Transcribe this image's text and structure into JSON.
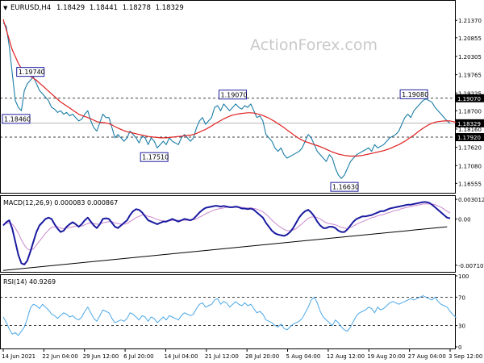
{
  "header": {
    "arrow_glyph": "▼",
    "symbol": "EURUSD,H4",
    "ohlc": [
      "1.18429",
      "1.18441",
      "1.18278",
      "1.18329"
    ]
  },
  "watermark": "ActionForex.com",
  "colors": {
    "price": "#1a7da6",
    "ma": "#e02020",
    "macd": "#1a1aa0",
    "signal": "#cc88cc",
    "rsi": "#4aa8e8",
    "grid": "#000000",
    "label_border": "#2020a0",
    "price_tag": "#000000",
    "level_tag": "#000000"
  },
  "chart_data": [
    {
      "type": "line",
      "title": "EURUSD,H4",
      "ylim": [
        1.163,
        1.219
      ],
      "y_ticks": [
        "1.21370",
        "1.20855",
        "1.20305",
        "1.19765",
        "1.19225",
        "1.18700",
        "1.18160",
        "1.17620",
        "1.17080",
        "1.16555"
      ],
      "y_tick_values": [
        1.2137,
        1.20855,
        1.20305,
        1.19765,
        1.19225,
        1.187,
        1.1816,
        1.1762,
        1.1708,
        1.16555
      ],
      "last_price": "1.18329",
      "last_price_value": 1.18329,
      "levels": [
        {
          "label": "1.19070",
          "value": 1.1907
        },
        {
          "label": "1.17920",
          "value": 1.1792
        }
      ],
      "side_labels": [
        {
          "label": "1.18460",
          "value": 1.1846
        }
      ],
      "annotations": [
        {
          "label": "1.19740",
          "x": 9,
          "value": 1.1974
        },
        {
          "label": "1.17510",
          "x": 50,
          "value": 1.1751
        },
        {
          "label": "1.19070",
          "x": 76,
          "value": 1.1907
        },
        {
          "label": "1.16630",
          "x": 113,
          "value": 1.1663
        },
        {
          "label": "1.19080",
          "x": 136,
          "value": 1.1908
        }
      ],
      "series": [
        {
          "name": "close",
          "values": [
            1.213,
            1.212,
            1.206,
            1.198,
            1.19,
            1.188,
            1.187,
            1.193,
            1.195,
            1.196,
            1.197,
            1.195,
            1.193,
            1.192,
            1.191,
            1.19,
            1.188,
            1.1875,
            1.1865,
            1.187,
            1.186,
            1.1865,
            1.1855,
            1.186,
            1.185,
            1.184,
            1.1845,
            1.186,
            1.187,
            1.184,
            1.182,
            1.181,
            1.1835,
            1.186,
            1.185,
            1.185,
            1.182,
            1.179,
            1.18,
            1.179,
            1.178,
            1.179,
            1.181,
            1.18,
            1.179,
            1.1775,
            1.1795,
            1.179,
            1.177,
            1.179,
            1.178,
            1.176,
            1.177,
            1.178,
            1.177,
            1.179,
            1.178,
            1.1775,
            1.177,
            1.179,
            1.18,
            1.179,
            1.178,
            1.179,
            1.182,
            1.184,
            1.185,
            1.183,
            1.184,
            1.185,
            1.188,
            1.1885,
            1.187,
            1.189,
            1.188,
            1.187,
            1.188,
            1.189,
            1.188,
            1.1875,
            1.1885,
            1.188,
            1.189,
            1.187,
            1.185,
            1.1855,
            1.184,
            1.18,
            1.179,
            1.178,
            1.176,
            1.175,
            1.176,
            1.174,
            1.173,
            1.1735,
            1.174,
            1.1745,
            1.175,
            1.176,
            1.178,
            1.18,
            1.179,
            1.177,
            1.175,
            1.174,
            1.173,
            1.172,
            1.174,
            1.173,
            1.17,
            1.168,
            1.167,
            1.168,
            1.17,
            1.172,
            1.173,
            1.174,
            1.1745,
            1.175,
            1.1755,
            1.176,
            1.175,
            1.177,
            1.176,
            1.1765,
            1.177,
            1.178,
            1.179,
            1.1795,
            1.18,
            1.181,
            1.183,
            1.185,
            1.186,
            1.185,
            1.187,
            1.188,
            1.189,
            1.19,
            1.1905,
            1.19,
            1.1895,
            1.188,
            1.187,
            1.186,
            1.185,
            1.184,
            1.1833
          ]
        },
        {
          "name": "moving average",
          "values": [
            1.214,
            1.211,
            1.208,
            1.205,
            1.203,
            1.201,
            1.1995,
            1.1985,
            1.1978,
            1.1972,
            1.1966,
            1.196,
            1.1952,
            1.1944,
            1.1936,
            1.1928,
            1.192,
            1.1912,
            1.1904,
            1.1896,
            1.189,
            1.1884,
            1.1878,
            1.1872,
            1.1866,
            1.186,
            1.1856,
            1.1853,
            1.185,
            1.1846,
            1.1842,
            1.1838,
            1.1836,
            1.1835,
            1.1834,
            1.1832,
            1.1828,
            1.1823,
            1.1819,
            1.1815,
            1.1811,
            1.1808,
            1.1806,
            1.1804,
            1.1802,
            1.18,
            1.1798,
            1.1796,
            1.1794,
            1.1793,
            1.1792,
            1.1791,
            1.179,
            1.179,
            1.179,
            1.1791,
            1.1792,
            1.1793,
            1.1794,
            1.1795,
            1.1796,
            1.1797,
            1.1798,
            1.18,
            1.1803,
            1.1807,
            1.1811,
            1.1815,
            1.182,
            1.1825,
            1.1831,
            1.1836,
            1.1841,
            1.1846,
            1.185,
            1.1854,
            1.1857,
            1.1859,
            1.1861,
            1.1862,
            1.1863,
            1.1864,
            1.1864,
            1.1863,
            1.1861,
            1.1859,
            1.1856,
            1.1852,
            1.1848,
            1.1843,
            1.1838,
            1.1832,
            1.1826,
            1.182,
            1.1813,
            1.1807,
            1.18,
            1.1794,
            1.1788,
            1.1783,
            1.1779,
            1.1776,
            1.1773,
            1.177,
            1.1767,
            1.1764,
            1.176,
            1.1756,
            1.1752,
            1.1748,
            1.1745,
            1.1742,
            1.174,
            1.1738,
            1.1737,
            1.1736,
            1.1736,
            1.1736,
            1.1737,
            1.1738,
            1.174,
            1.1742,
            1.1744,
            1.1746,
            1.1748,
            1.175,
            1.1752,
            1.1755,
            1.1758,
            1.1762,
            1.1766,
            1.177,
            1.1775,
            1.178,
            1.1786,
            1.1792,
            1.1798,
            1.1805,
            1.1812,
            1.1818,
            1.1824,
            1.1829,
            1.1833,
            1.1836,
            1.1838,
            1.1839,
            1.184,
            1.184,
            1.184,
            1.1838,
            1.1836
          ]
        }
      ],
      "x_ticks": [
        "14 Jun 2021",
        "22 Jun 04:00",
        "29 Jun 12:00",
        "6 Jul 20:00",
        "14 Jul 04:00",
        "21 Jul 12:00",
        "28 Jul 20:00",
        "5 Aug 04:00",
        "12 Aug 12:00",
        "19 Aug 20:00",
        "27 Aug 04:00",
        "3 Sep 12:00"
      ]
    },
    {
      "type": "line",
      "title": "MACD(12,26,9) 0.000083 0.000867",
      "ylim": [
        -0.008,
        0.0034
      ],
      "y_ticks": [
        "0.003012",
        "0.00",
        "-0.007109"
      ],
      "y_tick_values": [
        0.003012,
        0.0,
        -0.007109
      ],
      "series": [
        {
          "name": "MACD",
          "values": [
            -0.001,
            -0.0005,
            -0.0002,
            -0.0015,
            -0.0035,
            -0.0055,
            -0.0068,
            -0.007,
            -0.0064,
            -0.005,
            -0.0035,
            -0.002,
            -0.001,
            -0.0005,
            0.0,
            0.0002,
            0.0,
            -0.0008,
            -0.0015,
            -0.002,
            -0.0018,
            -0.0012,
            -0.0008,
            -0.0005,
            -0.0008,
            -0.0012,
            -0.0008,
            -0.0002,
            0.0002,
            -0.0004,
            -0.001,
            -0.0014,
            -0.0008,
            0.0,
            0.0001,
            0.0,
            -0.0006,
            -0.0012,
            -0.0014,
            -0.001,
            -0.0006,
            -0.0002,
            0.0006,
            0.0012,
            0.0015,
            0.0014,
            0.001,
            0.0004,
            -0.0002,
            -0.0004,
            -0.0006,
            -0.0008,
            -0.0006,
            -0.0004,
            -0.0004,
            -0.0002,
            0.0,
            -0.0002,
            -0.0004,
            -0.0002,
            0.0,
            -0.0001,
            -0.0002,
            0.0,
            0.0005,
            0.001,
            0.0014,
            0.0017,
            0.0018,
            0.0019,
            0.002,
            0.002,
            0.0019,
            0.002,
            0.0019,
            0.0018,
            0.0018,
            0.0019,
            0.0018,
            0.0016,
            0.0016,
            0.0015,
            0.0016,
            0.0014,
            0.001,
            0.0006,
            0.0002,
            -0.0006,
            -0.0012,
            -0.0018,
            -0.0022,
            -0.0024,
            -0.0025,
            -0.0026,
            -0.0024,
            -0.002,
            -0.0014,
            -0.0006,
            0.0002,
            0.0008,
            0.0012,
            0.0014,
            0.001,
            0.0004,
            -0.0004,
            -0.001,
            -0.0014,
            -0.0014,
            -0.0012,
            -0.0012,
            -0.0014,
            -0.0018,
            -0.002,
            -0.002,
            -0.0016,
            -0.001,
            -0.0004,
            0.0,
            0.0002,
            0.0004,
            0.0004,
            0.0005,
            0.0006,
            0.0008,
            0.001,
            0.0012,
            0.0012,
            0.0014,
            0.0016,
            0.0017,
            0.0018,
            0.0019,
            0.002,
            0.0021,
            0.0022,
            0.0022,
            0.0023,
            0.0024,
            0.0025,
            0.0026,
            0.0026,
            0.0025,
            0.0022,
            0.0018,
            0.0014,
            0.001,
            0.0006,
            0.0002,
            0.0001
          ]
        },
        {
          "name": "Signal",
          "values": [
            -0.0008,
            -0.0007,
            -0.0006,
            -0.0008,
            -0.0014,
            -0.0022,
            -0.0032,
            -0.004,
            -0.0046,
            -0.0048,
            -0.0046,
            -0.004,
            -0.0034,
            -0.0028,
            -0.0022,
            -0.0017,
            -0.0013,
            -0.0012,
            -0.0012,
            -0.0014,
            -0.0015,
            -0.0014,
            -0.0013,
            -0.0012,
            -0.0011,
            -0.0011,
            -0.0011,
            -0.0009,
            -0.0007,
            -0.0006,
            -0.0007,
            -0.0008,
            -0.0008,
            -0.0006,
            -0.0005,
            -0.0004,
            -0.0004,
            -0.0006,
            -0.0007,
            -0.0008,
            -0.0008,
            -0.0007,
            -0.0004,
            -0.0001,
            0.0002,
            0.0004,
            0.0006,
            0.0006,
            0.0004,
            0.0003,
            0.0001,
            -0.0001,
            -0.0002,
            -0.0003,
            -0.0003,
            -0.0003,
            -0.0002,
            -0.0002,
            -0.0002,
            -0.0002,
            -0.0002,
            -0.0002,
            -0.0002,
            -0.0001,
            0.0,
            0.0003,
            0.0005,
            0.0008,
            0.001,
            0.0012,
            0.0014,
            0.0015,
            0.0016,
            0.0017,
            0.0018,
            0.0018,
            0.0018,
            0.0018,
            0.0018,
            0.0018,
            0.0017,
            0.0017,
            0.0017,
            0.0016,
            0.0015,
            0.0013,
            0.0011,
            0.0007,
            0.0003,
            -0.0002,
            -0.0006,
            -0.001,
            -0.0013,
            -0.0016,
            -0.0018,
            -0.0018,
            -0.0017,
            -0.0015,
            -0.0011,
            -0.0007,
            -0.0003,
            0.0001,
            0.0003,
            0.0003,
            0.0002,
            0.0,
            -0.0003,
            -0.0006,
            -0.0007,
            -0.0008,
            -0.0009,
            -0.0011,
            -0.0013,
            -0.0014,
            -0.0015,
            -0.0013,
            -0.0011,
            -0.0008,
            -0.0006,
            -0.0004,
            -0.0002,
            0.0,
            0.0002,
            0.0003,
            0.0005,
            0.0006,
            0.0007,
            0.0009,
            0.001,
            0.0012,
            0.0013,
            0.0014,
            0.0016,
            0.0017,
            0.0018,
            0.0019,
            0.002,
            0.0021,
            0.0022,
            0.0023,
            0.0023,
            0.0023,
            0.0023,
            0.0022,
            0.002,
            0.0018,
            0.0015,
            0.0012,
            0.0009
          ]
        }
      ],
      "trendline": [
        [
          0,
          -0.0079
        ],
        [
          147,
          -0.0012
        ]
      ]
    },
    {
      "type": "line",
      "title": "RSI(14) 40.9269",
      "ylim": [
        0,
        100
      ],
      "y_ticks": [
        "100",
        "70",
        "30",
        "0"
      ],
      "y_tick_values": [
        100,
        70,
        30,
        0
      ],
      "levels": [
        70,
        30
      ],
      "series": [
        {
          "name": "RSI",
          "values": [
            42,
            35,
            25,
            18,
            20,
            16,
            22,
            28,
            40,
            55,
            60,
            58,
            54,
            60,
            56,
            52,
            46,
            44,
            40,
            44,
            48,
            46,
            42,
            44,
            40,
            38,
            42,
            50,
            56,
            48,
            40,
            36,
            44,
            52,
            50,
            48,
            40,
            34,
            36,
            38,
            36,
            40,
            48,
            46,
            42,
            38,
            44,
            42,
            36,
            42,
            40,
            34,
            38,
            42,
            38,
            44,
            42,
            40,
            38,
            44,
            48,
            46,
            44,
            46,
            54,
            60,
            62,
            56,
            58,
            60,
            66,
            68,
            60,
            64,
            62,
            56,
            60,
            64,
            60,
            58,
            62,
            58,
            60,
            54,
            48,
            50,
            46,
            38,
            36,
            34,
            30,
            28,
            32,
            26,
            24,
            28,
            32,
            34,
            36,
            40,
            48,
            56,
            66,
            70,
            62,
            50,
            42,
            38,
            34,
            30,
            38,
            34,
            28,
            24,
            22,
            28,
            36,
            44,
            48,
            50,
            52,
            56,
            54,
            48,
            56,
            52,
            54,
            58,
            62,
            64,
            62,
            60,
            62,
            64,
            66,
            68,
            66,
            68,
            70,
            72,
            70,
            68,
            66,
            70,
            64,
            60,
            58,
            56,
            50,
            45,
            41
          ]
        }
      ],
      "x_ticks": [
        "14 Jun 2021",
        "22 Jun 04:00",
        "29 Jun 12:00",
        "6 Jul 20:00",
        "14 Jul 04:00",
        "21 Jul 12:00",
        "28 Jul 20:00",
        "5 Aug 04:00",
        "12 Aug 12:00",
        "19 Aug 20:00",
        "27 Aug 04:00",
        "3 Sep 12:00"
      ]
    }
  ]
}
